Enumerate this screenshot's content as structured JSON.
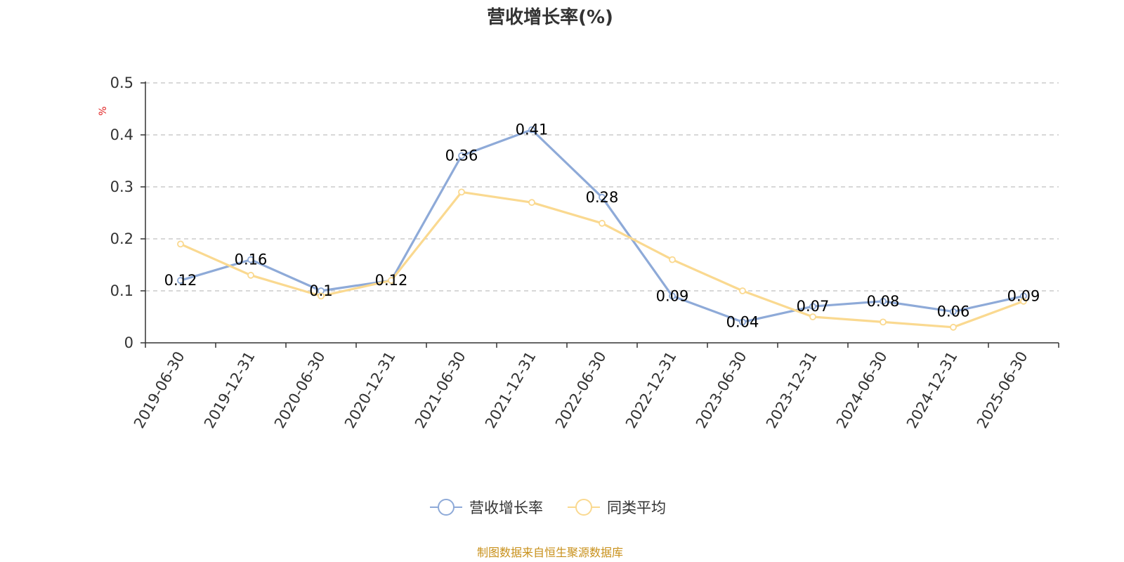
{
  "chart_data": {
    "type": "line",
    "title": "营收增长率(%)",
    "ylabel": "%",
    "ylim": [
      0,
      0.5
    ],
    "yticks": [
      "0",
      "0.1",
      "0.2",
      "0.3",
      "0.4",
      "0.5"
    ],
    "categories": [
      "2019-06-30",
      "2019-12-31",
      "2020-06-30",
      "2020-12-31",
      "2021-06-30",
      "2021-12-31",
      "2022-06-30",
      "2022-12-31",
      "2023-06-30",
      "2023-12-31",
      "2024-06-30",
      "2024-12-31",
      "2025-06-30"
    ],
    "series": [
      {
        "name": "营收增长率",
        "color": "#8eaad8",
        "values": [
          0.12,
          0.16,
          0.1,
          0.12,
          0.36,
          0.41,
          0.28,
          0.09,
          0.04,
          0.07,
          0.08,
          0.06,
          0.09
        ],
        "labels": [
          "0.12",
          "0.16",
          "0.1",
          "0.12",
          "0.36",
          "0.41",
          "0.28",
          "0.09",
          "0.04",
          "0.07",
          "0.08",
          "0.06",
          "0.09"
        ]
      },
      {
        "name": "同类平均",
        "color": "#fad990",
        "values": [
          0.19,
          0.13,
          0.09,
          0.12,
          0.29,
          0.27,
          0.23,
          0.16,
          0.1,
          0.05,
          0.04,
          0.03,
          0.08
        ]
      }
    ],
    "grid": true,
    "legend": "bottom-center"
  },
  "footer": {
    "source": "制图数据来自恒生聚源数据库"
  }
}
